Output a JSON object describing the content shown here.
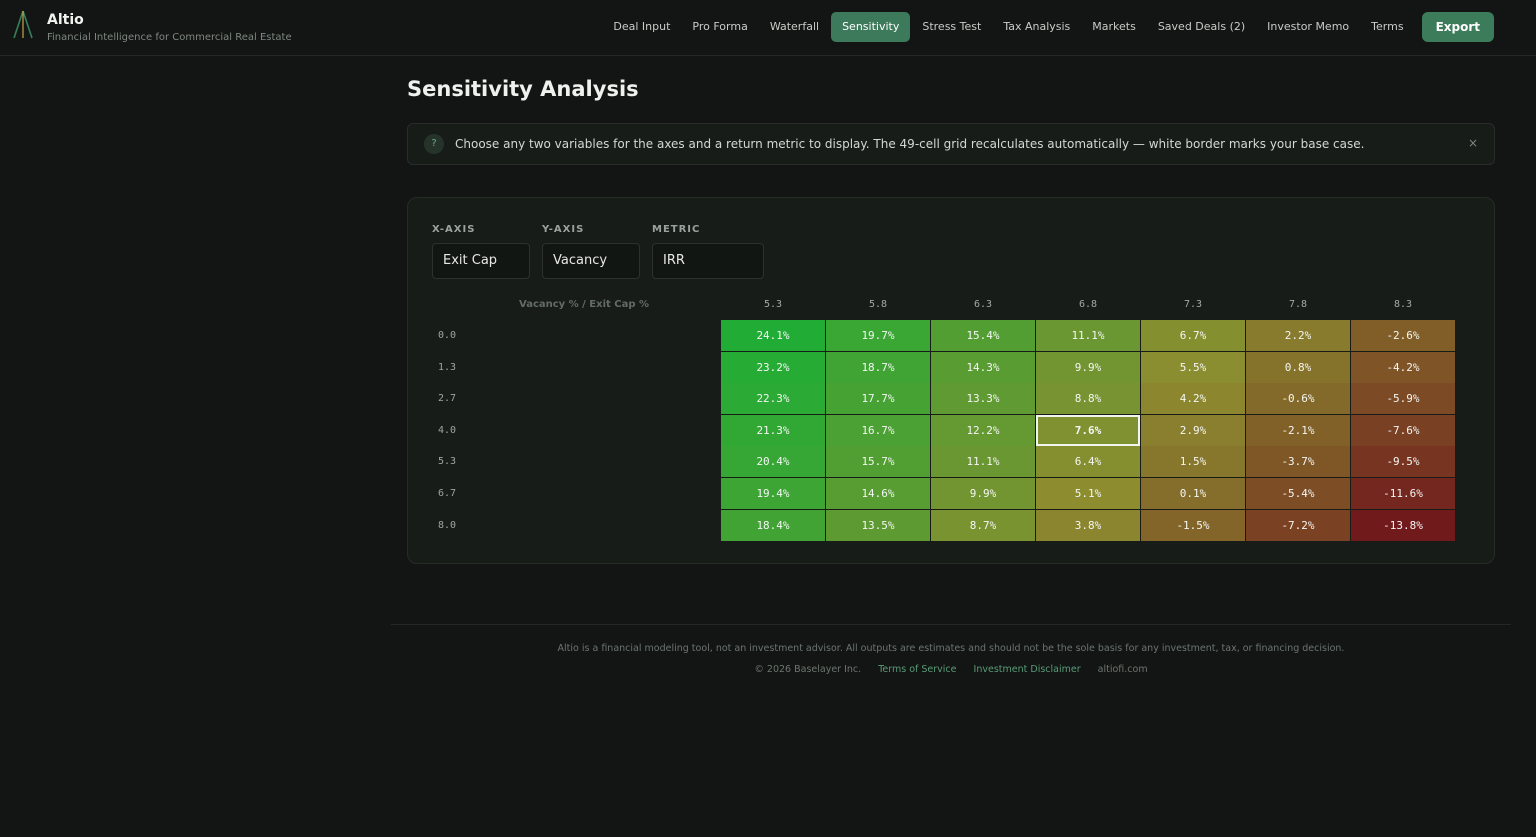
{
  "brand": {
    "name": "Altio",
    "tagline": "Financial Intelligence for Commercial Real Estate"
  },
  "nav": {
    "items": [
      "Deal Input",
      "Pro Forma",
      "Waterfall",
      "Sensitivity",
      "Stress Test",
      "Tax Analysis",
      "Markets",
      "Saved Deals (2)",
      "Investor Memo",
      "Terms"
    ],
    "active": "Sensitivity",
    "export_label": "Export"
  },
  "page": {
    "title": "Sensitivity Analysis"
  },
  "banner": {
    "icon": "question-icon",
    "icon_glyph": "?",
    "text": "Choose any two variables for the axes and a return metric to display. The 49-cell grid recalculates automatically — white border marks your base case.",
    "close_glyph": "×"
  },
  "selectors": {
    "x_axis": {
      "label": "X-AXIS",
      "value": "Exit Cap"
    },
    "y_axis": {
      "label": "Y-AXIS",
      "value": "Vacancy"
    },
    "metric": {
      "label": "METRIC",
      "value": "IRR"
    }
  },
  "grid": {
    "corner_label": "Vacancy % / Exit Cap %",
    "columns": [
      "5.3",
      "5.8",
      "6.3",
      "6.8",
      "7.3",
      "7.8",
      "8.3"
    ],
    "rows": [
      "0.0",
      "1.3",
      "2.7",
      "4.0",
      "5.3",
      "6.7",
      "8.0"
    ],
    "base_case": {
      "row": 3,
      "col": 3
    },
    "values": [
      [
        "24.1%",
        "19.7%",
        "15.4%",
        "11.1%",
        "6.7%",
        "2.2%",
        "-2.6%"
      ],
      [
        "23.2%",
        "18.7%",
        "14.3%",
        "9.9%",
        "5.5%",
        "0.8%",
        "-4.2%"
      ],
      [
        "22.3%",
        "17.7%",
        "13.3%",
        "8.8%",
        "4.2%",
        "-0.6%",
        "-5.9%"
      ],
      [
        "21.3%",
        "16.7%",
        "12.2%",
        "7.6%",
        "2.9%",
        "-2.1%",
        "-7.6%"
      ],
      [
        "20.4%",
        "15.7%",
        "11.1%",
        "6.4%",
        "1.5%",
        "-3.7%",
        "-9.5%"
      ],
      [
        "19.4%",
        "14.6%",
        "9.9%",
        "5.1%",
        "0.1%",
        "-5.4%",
        "-11.6%"
      ],
      [
        "18.4%",
        "13.5%",
        "8.7%",
        "3.8%",
        "-1.5%",
        "-7.2%",
        "-13.8%"
      ]
    ],
    "colors": {
      "high": "#21ad35",
      "mid": "#8d8d30",
      "low": "#701a1c"
    }
  },
  "footer": {
    "disclaimer": "Altio is a financial modeling tool, not an investment advisor. All outputs are estimates and should not be the sole basis for any investment, tax, or financing decision.",
    "copyright": "© 2026 Baselayer Inc.",
    "terms_link": "Terms of Service",
    "disclaimer_link": "Investment Disclaimer",
    "site": "altiofi.com"
  }
}
